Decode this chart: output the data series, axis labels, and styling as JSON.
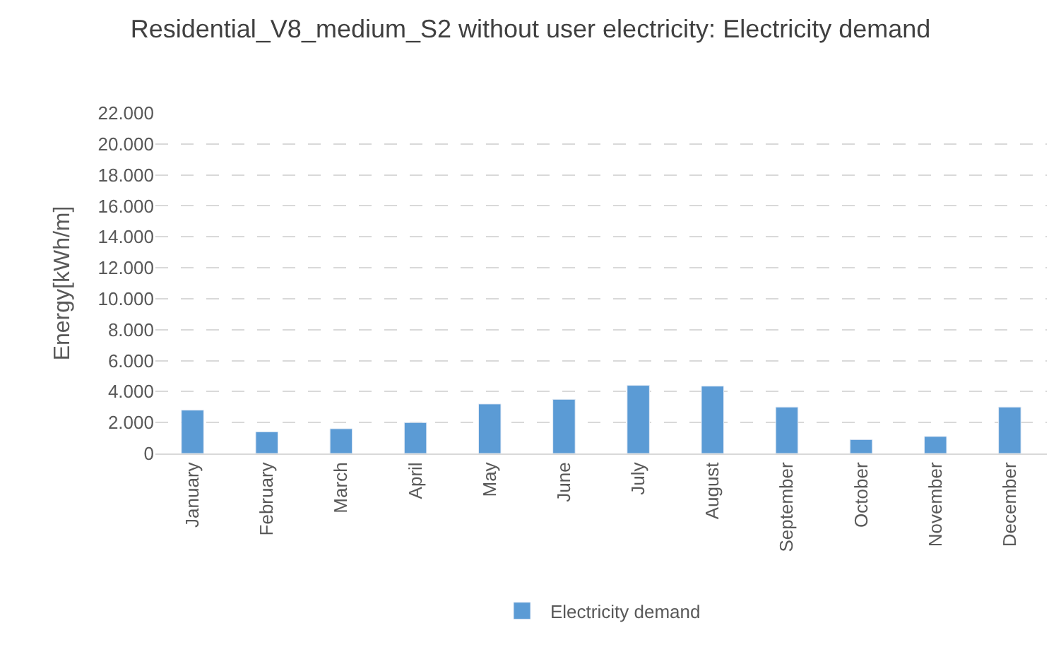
{
  "chart_data": {
    "type": "bar",
    "title": "Residential_V8_medium_S2 without user electricity: Electricity demand",
    "ylabel": "Energy[kWh/m]",
    "categories": [
      "January",
      "February",
      "March",
      "April",
      "May",
      "June",
      "July",
      "August",
      "September",
      "October",
      "November",
      "December"
    ],
    "series": [
      {
        "name": "Electricity demand",
        "color": "#5b9bd5",
        "values": [
          2800,
          1400,
          1600,
          2000,
          3200,
          3500,
          4400,
          4350,
          3000,
          900,
          1100,
          3000
        ]
      }
    ],
    "ylim": [
      0,
      22000
    ],
    "yticks": [
      0,
      {
        "value": 2000,
        "label": "2.000"
      },
      {
        "value": 4000,
        "label": "4.000"
      },
      {
        "value": 6000,
        "label": "6.000"
      },
      {
        "value": 8000,
        "label": "8.000"
      },
      {
        "value": 10000,
        "label": "10.000"
      },
      {
        "value": 12000,
        "label": "12.000"
      },
      {
        "value": 14000,
        "label": "14.000"
      },
      {
        "value": 16000,
        "label": "16.000"
      },
      {
        "value": 18000,
        "label": "18.000"
      },
      {
        "value": 20000,
        "label": "20.000"
      },
      {
        "value": 22000,
        "label": "22.000"
      }
    ],
    "grid": "y",
    "legend": "bottom"
  }
}
